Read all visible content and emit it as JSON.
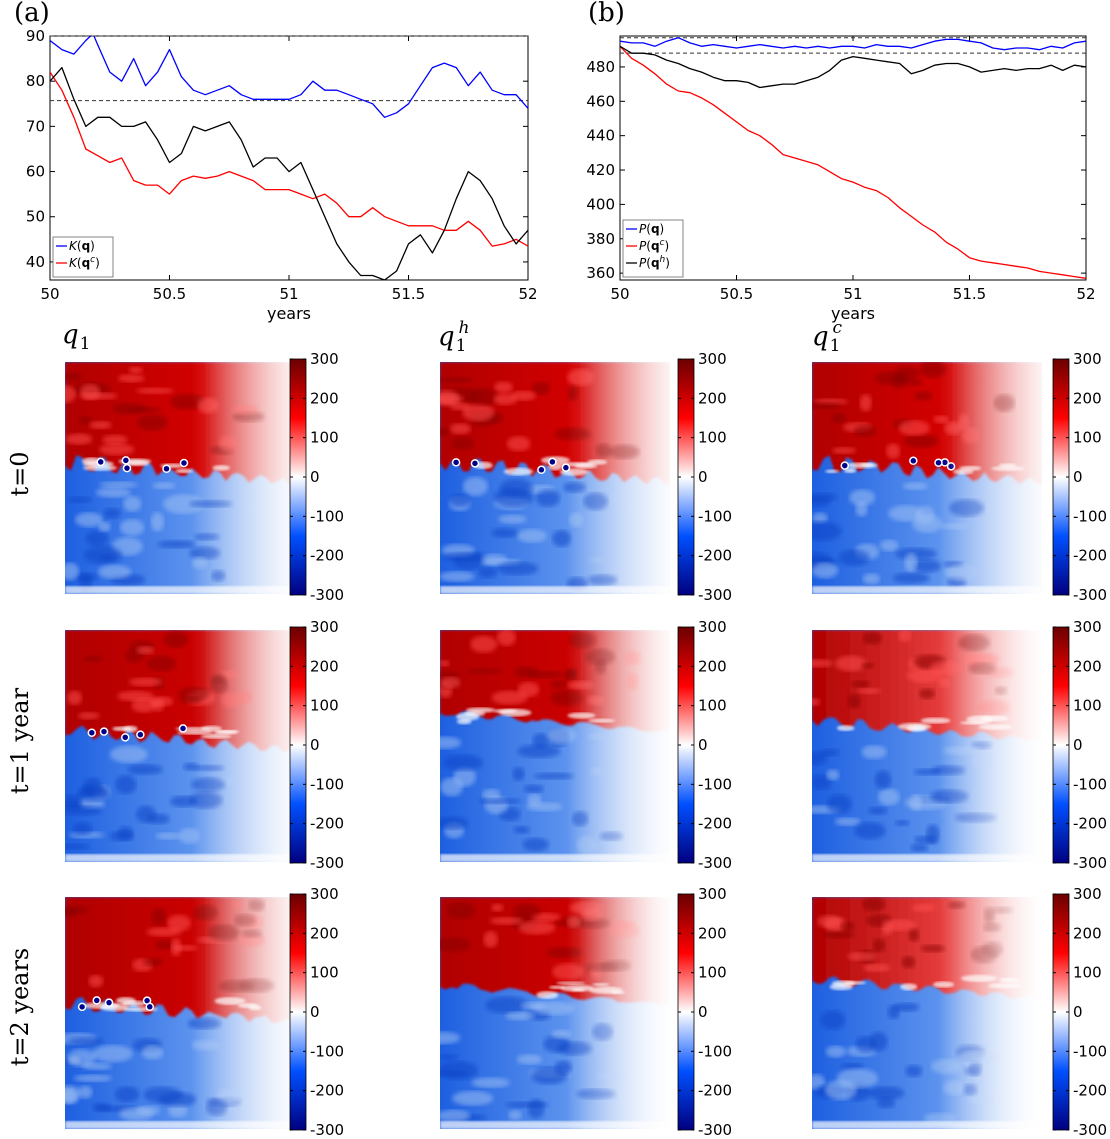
{
  "panels": {
    "a": {
      "label": "(a)"
    },
    "b": {
      "label": "(b)"
    }
  },
  "chart_data": [
    {
      "type": "line",
      "panel": "(a)",
      "xlabel": "years",
      "ylabel": "",
      "xlim": [
        50,
        52
      ],
      "ylim": [
        36,
        90
      ],
      "xticks": [
        "50",
        "50.5",
        "51",
        "51.5",
        "52"
      ],
      "yticks": [
        "40",
        "50",
        "60",
        "70",
        "80",
        "90"
      ],
      "reference_lines": [
        90,
        75.7
      ],
      "legend": {
        "placement": "bottom-left",
        "entries": [
          "K(q)",
          "K(q^c)"
        ]
      },
      "series": [
        {
          "name": "K(q)",
          "color": "#0000ff",
          "x": [
            50.0,
            50.05,
            50.1,
            50.15,
            50.18,
            50.2,
            50.25,
            50.3,
            50.35,
            50.4,
            50.45,
            50.5,
            50.55,
            50.6,
            50.65,
            50.7,
            50.75,
            50.8,
            50.85,
            50.9,
            50.95,
            51.0,
            51.05,
            51.1,
            51.15,
            51.2,
            51.25,
            51.3,
            51.35,
            51.4,
            51.45,
            51.5,
            51.55,
            51.6,
            51.65,
            51.7,
            51.75,
            51.8,
            51.85,
            51.9,
            51.95,
            52.0
          ],
          "y": [
            89,
            87,
            86,
            89,
            90.5,
            88,
            82,
            80,
            85,
            79,
            82,
            87,
            81,
            78,
            77,
            78,
            79,
            77,
            76,
            76,
            76,
            76,
            77,
            80,
            78,
            78,
            77,
            76,
            75,
            72,
            73,
            75,
            79,
            83,
            84,
            83,
            79,
            82,
            78,
            77,
            77,
            74
          ]
        },
        {
          "name": "K(q^c)",
          "color": "#ff0000",
          "x": [
            50.0,
            50.05,
            50.1,
            50.15,
            50.2,
            50.25,
            50.3,
            50.35,
            50.4,
            50.45,
            50.5,
            50.55,
            50.6,
            50.65,
            50.7,
            50.75,
            50.8,
            50.85,
            50.9,
            50.95,
            51.0,
            51.05,
            51.1,
            51.15,
            51.2,
            51.25,
            51.3,
            51.35,
            51.4,
            51.45,
            51.5,
            51.55,
            51.6,
            51.65,
            51.7,
            51.75,
            51.8,
            51.85,
            51.9,
            51.95,
            52.0
          ],
          "y": [
            82,
            78,
            72,
            65,
            63.5,
            62,
            63,
            58,
            57,
            57,
            55,
            58,
            59,
            58.5,
            59,
            60,
            59,
            58,
            56,
            56,
            56,
            55,
            54,
            55,
            53,
            50,
            50,
            52,
            50,
            49,
            48,
            48,
            48,
            47,
            47,
            49,
            47,
            43.5,
            44,
            45,
            43.5
          ]
        },
        {
          "name": "",
          "color": "#000000",
          "x": [
            50.0,
            50.05,
            50.1,
            50.15,
            50.2,
            50.25,
            50.3,
            50.35,
            50.4,
            50.45,
            50.5,
            50.55,
            50.6,
            50.65,
            50.7,
            50.75,
            50.8,
            50.85,
            50.9,
            50.95,
            51.0,
            51.05,
            51.1,
            51.15,
            51.2,
            51.25,
            51.3,
            51.35,
            51.4,
            51.45,
            51.5,
            51.55,
            51.6,
            51.65,
            51.7,
            51.75,
            51.8,
            51.85,
            51.9,
            51.95,
            52.0
          ],
          "y": [
            80,
            83,
            76,
            70,
            72,
            72,
            70,
            70,
            71,
            67,
            62,
            64,
            70,
            69,
            70,
            71,
            67,
            61,
            63,
            63,
            60,
            62,
            56,
            50,
            44,
            40,
            37,
            37,
            36,
            38,
            44,
            46,
            42,
            47,
            54,
            60,
            58,
            54,
            48,
            44,
            47
          ]
        }
      ]
    },
    {
      "type": "line",
      "panel": "(b)",
      "xlabel": "years",
      "ylabel": "",
      "xlim": [
        50,
        52
      ],
      "ylim": [
        356,
        498
      ],
      "xticks": [
        "50",
        "50.5",
        "51",
        "51.5",
        "52"
      ],
      "yticks": [
        "360",
        "380",
        "400",
        "420",
        "440",
        "460",
        "480"
      ],
      "reference_lines": [
        497,
        488
      ],
      "legend": {
        "placement": "bottom-left",
        "entries": [
          "P(q)",
          "P(q^c)",
          "P(q^h)"
        ]
      },
      "series": [
        {
          "name": "P(q)",
          "color": "#0000ff",
          "x": [
            50.0,
            50.05,
            50.1,
            50.15,
            50.2,
            50.25,
            50.3,
            50.35,
            50.4,
            50.45,
            50.5,
            50.55,
            50.6,
            50.65,
            50.7,
            50.75,
            50.8,
            50.85,
            50.9,
            50.95,
            51.0,
            51.05,
            51.1,
            51.15,
            51.2,
            51.25,
            51.3,
            51.35,
            51.4,
            51.45,
            51.5,
            51.55,
            51.6,
            51.65,
            51.7,
            51.75,
            51.8,
            51.85,
            51.9,
            51.95,
            52.0
          ],
          "y": [
            495,
            494,
            494,
            492,
            495,
            497,
            494,
            492,
            493,
            492,
            491,
            492,
            493,
            492,
            491,
            492,
            491,
            492,
            491,
            492,
            492,
            491,
            493,
            492,
            492,
            491,
            493,
            495,
            496,
            496,
            495,
            494,
            491,
            490,
            491,
            491,
            490,
            492,
            491,
            494,
            495
          ]
        },
        {
          "name": "P(q^c)",
          "color": "#ff0000",
          "x": [
            50.0,
            50.05,
            50.1,
            50.15,
            50.2,
            50.25,
            50.3,
            50.35,
            50.4,
            50.45,
            50.5,
            50.55,
            50.6,
            50.65,
            50.7,
            50.75,
            50.8,
            50.85,
            50.9,
            50.95,
            51.0,
            51.05,
            51.1,
            51.15,
            51.2,
            51.25,
            51.3,
            51.35,
            51.4,
            51.45,
            51.5,
            51.55,
            51.6,
            51.65,
            51.7,
            51.75,
            51.8,
            51.85,
            51.9,
            51.95,
            52.0
          ],
          "y": [
            492,
            485,
            481,
            476,
            470,
            466,
            465,
            462,
            458,
            453,
            448,
            443,
            440,
            435,
            429,
            427,
            425,
            423,
            419,
            415,
            413,
            410,
            408,
            404,
            398,
            393,
            388,
            384,
            378,
            374,
            369,
            367,
            366,
            365,
            364,
            363,
            361,
            360,
            359,
            358,
            357
          ]
        },
        {
          "name": "P(q^h)",
          "color": "#000000",
          "x": [
            50.0,
            50.05,
            50.1,
            50.15,
            50.2,
            50.25,
            50.3,
            50.35,
            50.4,
            50.45,
            50.5,
            50.55,
            50.6,
            50.65,
            50.7,
            50.75,
            50.8,
            50.85,
            50.9,
            50.95,
            51.0,
            51.05,
            51.1,
            51.15,
            51.2,
            51.25,
            51.3,
            51.35,
            51.4,
            51.45,
            51.5,
            51.55,
            51.6,
            51.65,
            51.7,
            51.75,
            51.8,
            51.85,
            51.9,
            51.95,
            52.0
          ],
          "y": [
            492,
            488,
            488,
            487,
            484,
            482,
            479,
            477,
            474,
            472,
            472,
            471,
            468,
            469,
            470,
            470,
            472,
            474,
            478,
            484,
            486,
            485,
            484,
            483,
            482,
            476,
            478,
            481,
            482,
            482,
            480,
            477,
            478,
            479,
            478,
            479,
            479,
            481,
            478,
            481,
            480
          ]
        }
      ]
    },
    {
      "type": "heatmap",
      "panel": "maps",
      "columns": [
        "q1",
        "q1^h",
        "q1^c"
      ],
      "rows": [
        "t=0",
        "t=1 year",
        "t=2 years"
      ],
      "colorbar": {
        "min": -300,
        "max": 300,
        "ticks": [
          "300",
          "200",
          "100",
          "0",
          "-100",
          "-200",
          "-300"
        ]
      },
      "colors": {
        "high": "#6b0000",
        "mid": "#ffffff",
        "low": "#00007f",
        "red": "#ff0000",
        "blue": "#0050ff"
      }
    }
  ],
  "labels": {
    "columns": [
      {
        "sym": "q",
        "sub": "1",
        "sup": ""
      },
      {
        "sym": "q",
        "sub": "1",
        "sup": "h"
      },
      {
        "sym": "q",
        "sub": "1",
        "sup": "c"
      }
    ],
    "rows": [
      "t=0",
      "t=1 year",
      "t=2 years"
    ]
  }
}
